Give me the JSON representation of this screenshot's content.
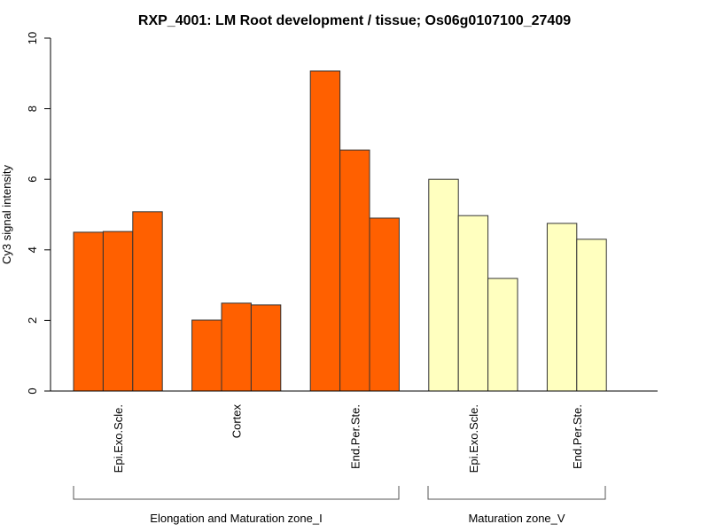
{
  "chart_data": {
    "type": "bar",
    "title": "RXP_4001: LM Root development / tissue; Os06g0107100_27409",
    "xlabel": "",
    "ylabel": "Cy3 signal intensity",
    "ylim": [
      0,
      10
    ],
    "yticks": [
      "0",
      "2",
      "4",
      "6",
      "8",
      "10"
    ],
    "grid": false,
    "legend": "none",
    "colors": {
      "zone_I": "#FF6000",
      "zone_V": "#FFFFBF"
    },
    "categories": [
      {
        "label": "Epi.Exo.Scle.",
        "group": "zone_I",
        "values": [
          4.5,
          4.52,
          5.08
        ]
      },
      {
        "label": "Cortex",
        "group": "zone_I",
        "values": [
          2.01,
          2.49,
          2.44
        ]
      },
      {
        "label": "End.Per.Ste.",
        "group": "zone_I",
        "values": [
          9.07,
          6.83,
          4.9
        ]
      },
      {
        "label": "Epi.Exo.Scle.",
        "group": "zone_V",
        "values": [
          6.0,
          4.97,
          3.19
        ]
      },
      {
        "label": "End.Per.Ste.",
        "group": "zone_V",
        "values": [
          4.75,
          4.3
        ]
      }
    ],
    "groups": [
      {
        "id": "zone_I",
        "label": "Elongation and Maturation zone_I"
      },
      {
        "id": "zone_V",
        "label": "Maturation zone_V"
      }
    ]
  }
}
